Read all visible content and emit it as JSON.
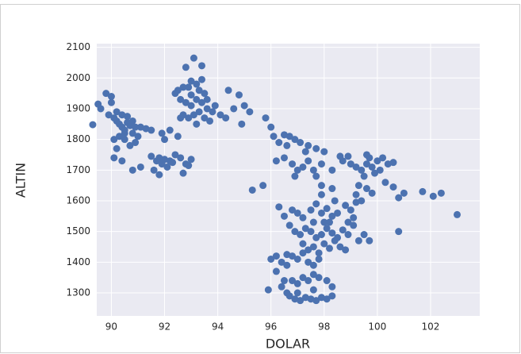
{
  "chart_data": {
    "type": "scatter",
    "xlabel": "DOLAR",
    "ylabel": "ALTIN",
    "xlim": [
      89.45,
      103.85
    ],
    "ylim": [
      1225,
      2112
    ],
    "xticks": [
      90,
      92,
      94,
      96,
      98,
      100,
      102
    ],
    "yticks": [
      1300,
      1400,
      1500,
      1600,
      1700,
      1800,
      1900,
      2000,
      2100
    ],
    "grid": true,
    "x": [
      89.3,
      89.5,
      89.6,
      89.8,
      90,
      90,
      89.9,
      90.1,
      90.2,
      90.3,
      90.4,
      90.5,
      90.6,
      90.7,
      90.2,
      90.4,
      90.6,
      90.8,
      90.9,
      91.1,
      91.3,
      90.1,
      90.3,
      90.5,
      90.7,
      90.9,
      90.2,
      91,
      90.1,
      90.4,
      90.8,
      91.1,
      90.5,
      90.8,
      91.5,
      91.5,
      91.7,
      91.8,
      91.9,
      92,
      92.1,
      92.2,
      92.4,
      92.6,
      92.8,
      93,
      92.7,
      92,
      91.9,
      92.2,
      92.5,
      91.6,
      91.8,
      92.3,
      92.9,
      92.5,
      92.7,
      92.9,
      93.1,
      93.4,
      92.8,
      93,
      93.2,
      93.3,
      93.5,
      92.6,
      92.8,
      93,
      93.2,
      93.4,
      93.6,
      93.8,
      92.7,
      92.9,
      93.1,
      93.3,
      93.5,
      93.7,
      92.4,
      93.6,
      93.9,
      92.6,
      93.2,
      93,
      93.4,
      94.1,
      94.3,
      94.4,
      94.8,
      94.6,
      95,
      95.2,
      95.8,
      94.9,
      96,
      96.1,
      96.3,
      96.5,
      96.7,
      96.9,
      97.1,
      97.4,
      97.7,
      98,
      96.2,
      96.5,
      96.8,
      97,
      97.2,
      97.4,
      97.6,
      97.9,
      98.3,
      96.6,
      97.3,
      97.9,
      97.7,
      98.3,
      96.9,
      98.7,
      99,
      99.2,
      99.4,
      99.6,
      99.8,
      100,
      100.2,
      100.4,
      99.5,
      99.9,
      100.1,
      100.3,
      100.6,
      99.7,
      98.9,
      99.3,
      99.6,
      99.8,
      99.2,
      100.8,
      99.6,
      98.6,
      96.3,
      96.5,
      96.8,
      97,
      97.2,
      97.5,
      97.7,
      97.9,
      98.1,
      98.3,
      98.5,
      98.8,
      99,
      99.2,
      99.4,
      96.7,
      96.9,
      97.1,
      97.3,
      97.5,
      97.7,
      97.9,
      98.1,
      98.3,
      98.5,
      98.7,
      98.9,
      99.1,
      99.3,
      99.5,
      99.7,
      97.2,
      97.4,
      97.6,
      97.8,
      98,
      98.2,
      98.4,
      98.6,
      98.8,
      96,
      96.2,
      96.4,
      96.6,
      96.8,
      97,
      97.2,
      97.4,
      97.6,
      97.8,
      98,
      98.2,
      97.6,
      99.1,
      98.9,
      96.6,
      96.2,
      97.9,
      98.4,
      95.9,
      96.4,
      96.6,
      96.8,
      97,
      97.2,
      97.4,
      97.6,
      97.8,
      98.1,
      98.3,
      96.7,
      96.9,
      97.1,
      97.3,
      97.5,
      97.7,
      97.9,
      98.1,
      98.3,
      97,
      97.6,
      96.5,
      95.3,
      95.7,
      101.7,
      102.1,
      102.4,
      103,
      100.8,
      100.6,
      101
    ],
    "series": [
      {
        "color": "#4c72b0",
        "values": [
          1848,
          1915,
          1900,
          1950,
          1940,
          1920,
          1880,
          1870,
          1860,
          1850,
          1840,
          1830,
          1855,
          1845,
          1890,
          1880,
          1875,
          1860,
          1840,
          1840,
          1835,
          1800,
          1810,
          1800,
          1780,
          1790,
          1770,
          1810,
          1740,
          1730,
          1700,
          1710,
          1820,
          1820,
          1830,
          1745,
          1730,
          1740,
          1720,
          1735,
          1710,
          1730,
          1750,
          1740,
          1720,
          1735,
          1690,
          1800,
          1820,
          1830,
          1810,
          1700,
          1685,
          1725,
          1715,
          1960,
          1970,
          1970,
          2065,
          2040,
          2035,
          1990,
          1980,
          1960,
          1950,
          1930,
          1920,
          1910,
          1930,
          1920,
          1900,
          1890,
          1880,
          1870,
          1880,
          1890,
          1870,
          1860,
          1950,
          1930,
          1910,
          1870,
          1850,
          1945,
          1995,
          1880,
          1870,
          1960,
          1945,
          1900,
          1910,
          1890,
          1870,
          1850,
          1840,
          1810,
          1790,
          1815,
          1810,
          1800,
          1790,
          1780,
          1770,
          1760,
          1730,
          1740,
          1720,
          1700,
          1710,
          1730,
          1700,
          1720,
          1700,
          1780,
          1760,
          1650,
          1680,
          1640,
          1680,
          1730,
          1720,
          1710,
          1700,
          1720,
          1710,
          1730,
          1740,
          1720,
          1680,
          1690,
          1700,
          1660,
          1725,
          1740,
          1745,
          1650,
          1640,
          1625,
          1620,
          1610,
          1750,
          1745,
          1580,
          1550,
          1570,
          1560,
          1545,
          1570,
          1590,
          1560,
          1575,
          1550,
          1560,
          1585,
          1570,
          1595,
          1600,
          1520,
          1500,
          1490,
          1510,
          1500,
          1480,
          1490,
          1510,
          1495,
          1480,
          1505,
          1490,
          1520,
          1470,
          1490,
          1470,
          1460,
          1440,
          1450,
          1430,
          1460,
          1445,
          1470,
          1450,
          1440,
          1410,
          1420,
          1400,
          1425,
          1420,
          1410,
          1430,
          1400,
          1390,
          1410,
          1530,
          1530,
          1530,
          1545,
          1530,
          1390,
          1370,
          1620,
          1600,
          1310,
          1320,
          1300,
          1340,
          1330,
          1350,
          1340,
          1360,
          1350,
          1340,
          1320,
          1290,
          1280,
          1275,
          1285,
          1280,
          1275,
          1285,
          1280,
          1290,
          1300,
          1310,
          1340,
          1635,
          1650,
          1630,
          1615,
          1625,
          1555,
          1500,
          1645,
          1625
        ]
      }
    ]
  }
}
